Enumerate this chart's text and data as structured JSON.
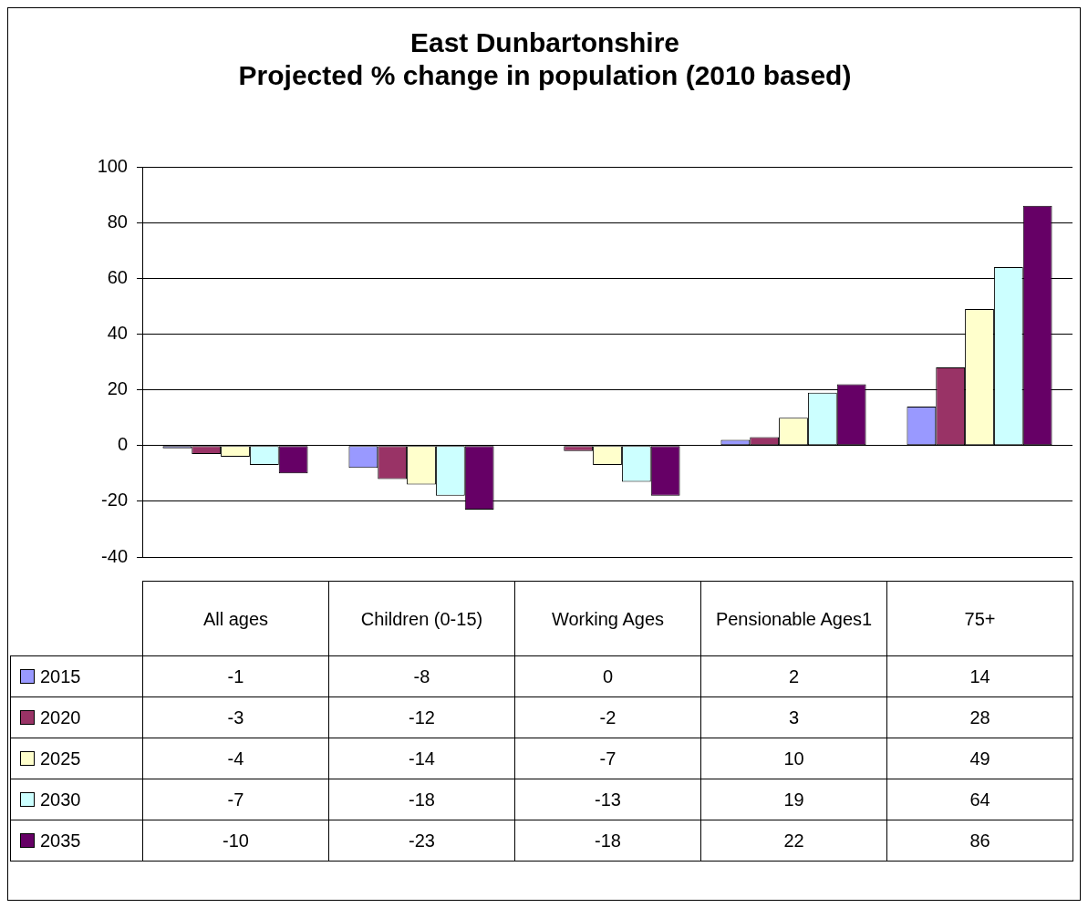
{
  "chart_data": {
    "type": "bar",
    "title": "East Dunbartonshire",
    "subtitle": "Projected % change in population (2010 based)",
    "categories": [
      "All ages",
      "Children (0-15)",
      "Working Ages",
      "Pensionable Ages1",
      "75+"
    ],
    "series": [
      {
        "name": "2015",
        "color": "#9999ff",
        "values": [
          -1,
          -8,
          0,
          2,
          14
        ]
      },
      {
        "name": "2020",
        "color": "#993366",
        "values": [
          -3,
          -12,
          -2,
          3,
          28
        ]
      },
      {
        "name": "2025",
        "color": "#ffffcc",
        "values": [
          -4,
          -14,
          -7,
          10,
          49
        ]
      },
      {
        "name": "2030",
        "color": "#ccffff",
        "values": [
          -7,
          -18,
          -13,
          19,
          64
        ]
      },
      {
        "name": "2035",
        "color": "#660066",
        "values": [
          -10,
          -23,
          -18,
          22,
          86
        ]
      }
    ],
    "ylim": [
      -40,
      100
    ],
    "yticks": [
      -40,
      -20,
      0,
      20,
      40,
      60,
      80,
      100
    ],
    "grid": "y",
    "legend": "bottom left",
    "data_labels": true
  }
}
